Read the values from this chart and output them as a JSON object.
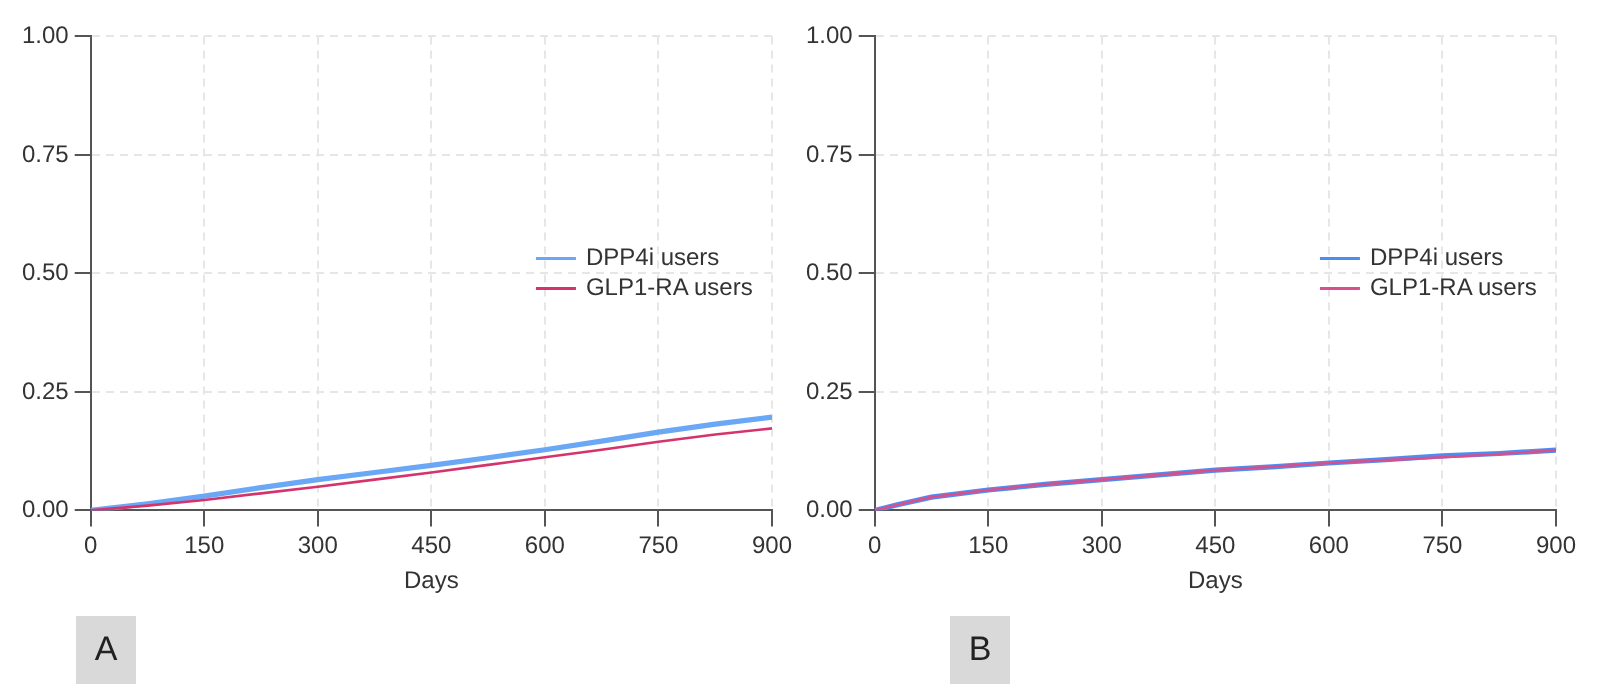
{
  "chart_data": [
    {
      "type": "line",
      "xlabel": "Days",
      "annotations": [
        "A"
      ],
      "xlim": [
        0,
        900
      ],
      "xticks": [
        0,
        150,
        300,
        450,
        600,
        750,
        900
      ],
      "ylim": [
        0,
        1
      ],
      "yticks": [
        {
          "value": 0,
          "label": "0.00"
        },
        {
          "value": 0.25,
          "label": "0.25"
        },
        {
          "value": 0.5,
          "label": "0.50"
        },
        {
          "value": 0.75,
          "label": "0.75"
        },
        {
          "value": 1,
          "label": "1.00"
        }
      ],
      "grid": true,
      "legend": "right",
      "series": [
        {
          "name": "DPP4i users",
          "color": "#6aa7f5",
          "x": [
            0,
            75,
            150,
            225,
            300,
            375,
            450,
            525,
            600,
            675,
            750,
            825,
            900
          ],
          "values": [
            0,
            0.014,
            0.03,
            0.048,
            0.065,
            0.08,
            0.095,
            0.111,
            0.128,
            0.146,
            0.165,
            0.182,
            0.197
          ]
        },
        {
          "name": "GLP1-RA users",
          "color": "#d6336c",
          "x": [
            0,
            75,
            150,
            225,
            300,
            375,
            450,
            525,
            600,
            675,
            750,
            825,
            900
          ],
          "values": [
            0,
            0.01,
            0.022,
            0.036,
            0.05,
            0.065,
            0.08,
            0.096,
            0.112,
            0.128,
            0.145,
            0.16,
            0.173
          ]
        }
      ]
    },
    {
      "type": "line",
      "xlabel": "Days",
      "annotations": [
        "B"
      ],
      "xlim": [
        0,
        900
      ],
      "xticks": [
        0,
        150,
        300,
        450,
        600,
        750,
        900
      ],
      "ylim": [
        0,
        1
      ],
      "yticks": [
        {
          "value": 0,
          "label": "0.00"
        },
        {
          "value": 0.25,
          "label": "0.25"
        },
        {
          "value": 0.5,
          "label": "0.50"
        },
        {
          "value": 0.75,
          "label": "0.75"
        },
        {
          "value": 1,
          "label": "1.00"
        }
      ],
      "grid": true,
      "legend": "right",
      "series": [
        {
          "name": "DPP4i users",
          "color": "#4d8df0",
          "x": [
            0,
            30,
            75,
            150,
            225,
            300,
            375,
            450,
            525,
            600,
            675,
            750,
            825,
            900
          ],
          "values": [
            0,
            0.012,
            0.028,
            0.043,
            0.055,
            0.065,
            0.075,
            0.085,
            0.092,
            0.1,
            0.107,
            0.115,
            0.12,
            0.127
          ]
        },
        {
          "name": "GLP1-RA users",
          "color": "#d94f8c",
          "x": [
            0,
            30,
            75,
            150,
            225,
            300,
            375,
            450,
            525,
            600,
            675,
            750,
            825,
            900
          ],
          "values": [
            0,
            0.012,
            0.028,
            0.043,
            0.055,
            0.065,
            0.075,
            0.085,
            0.092,
            0.1,
            0.106,
            0.112,
            0.119,
            0.127
          ]
        }
      ]
    }
  ]
}
